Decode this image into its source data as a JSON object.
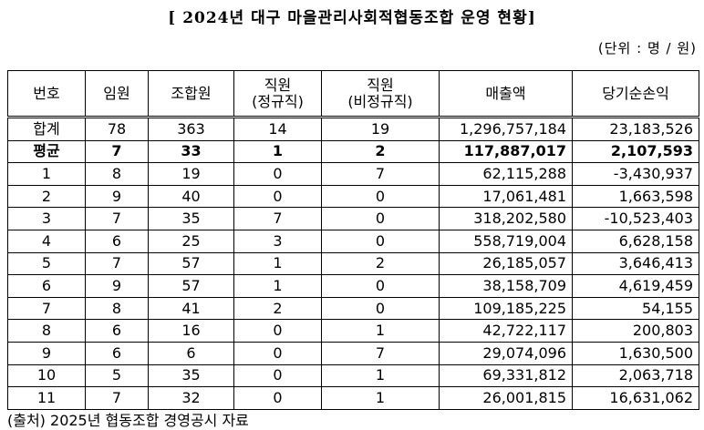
{
  "header": {
    "title": "[ 2024년 대구 마을관리사회적협동조합 운영 현황]",
    "unit": "(단위 : 명 / 원)"
  },
  "table": {
    "columns": [
      "번호",
      "임원",
      "조합원",
      "직원\n(정규직)",
      "직원\n(비정규직)",
      "매출액",
      "당기순손익"
    ],
    "rows": [
      [
        "합계",
        "78",
        "363",
        "14",
        "19",
        "1,296,757,184",
        "23,183,526"
      ],
      [
        "평균",
        "7",
        "33",
        "1",
        "2",
        "117,887,017",
        "2,107,593"
      ],
      [
        "1",
        "8",
        "19",
        "0",
        "7",
        "62,115,288",
        "-3,430,937"
      ],
      [
        "2",
        "9",
        "40",
        "0",
        "0",
        "17,061,481",
        "1,663,598"
      ],
      [
        "3",
        "7",
        "35",
        "7",
        "0",
        "318,202,580",
        "-10,523,403"
      ],
      [
        "4",
        "6",
        "25",
        "3",
        "0",
        "558,719,004",
        "6,628,158"
      ],
      [
        "5",
        "7",
        "57",
        "1",
        "2",
        "26,185,057",
        "3,646,413"
      ],
      [
        "6",
        "9",
        "57",
        "1",
        "0",
        "38,158,709",
        "4,619,459"
      ],
      [
        "7",
        "8",
        "41",
        "2",
        "0",
        "109,185,225",
        "54,155"
      ],
      [
        "8",
        "6",
        "16",
        "0",
        "1",
        "42,722,117",
        "200,803"
      ],
      [
        "9",
        "6",
        "6",
        "0",
        "7",
        "29,074,096",
        "1,630,500"
      ],
      [
        "10",
        "5",
        "35",
        "0",
        "1",
        "69,331,812",
        "2,063,718"
      ],
      [
        "11",
        "7",
        "32",
        "0",
        "1",
        "26,001,815",
        "16,631,062"
      ]
    ]
  },
  "footer": {
    "source": "(출처) 2025년 협동조합 경영공시 자료"
  }
}
